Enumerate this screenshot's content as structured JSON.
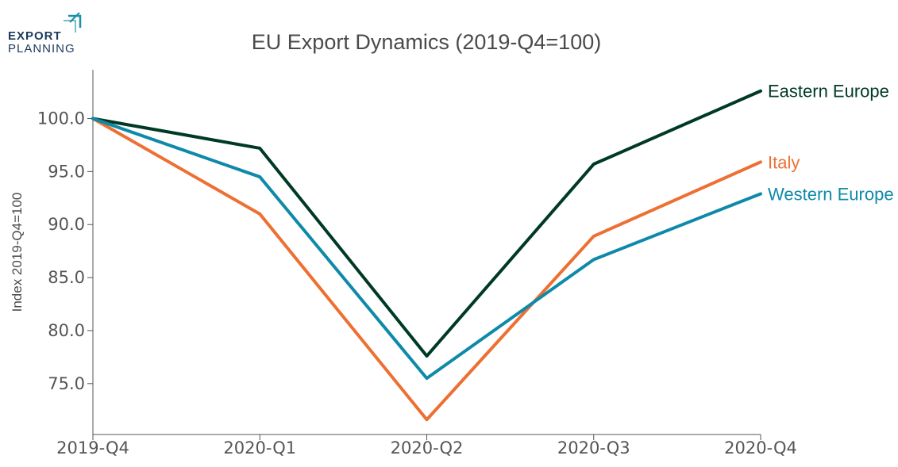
{
  "logo": {
    "line1": "EXPORT",
    "line2": "PLANNING",
    "accent_color": "#1a8fa5"
  },
  "chart_data": {
    "type": "line",
    "title": "EU Export Dynamics (2019-Q4=100)",
    "xlabel": "",
    "ylabel": "Index 2019-Q4=100",
    "categories": [
      "2019-Q4",
      "2020-Q1",
      "2020-Q2",
      "2020-Q3",
      "2020-Q4"
    ],
    "yticks": [
      "75.0",
      "80.0",
      "85.0",
      "90.0",
      "95.0",
      "100.0"
    ],
    "ylim": [
      70.2,
      104.6
    ],
    "grid": false,
    "legend": "inline labels at line ends",
    "series": [
      {
        "name": "Eastern Europe",
        "color": "#003a24",
        "values": [
          100.0,
          97.2,
          77.6,
          95.7,
          102.6
        ]
      },
      {
        "name": "Italy",
        "color": "#ee6f32",
        "values": [
          100.0,
          91.0,
          71.6,
          88.9,
          95.9
        ]
      },
      {
        "name": "Western Europe",
        "color": "#0e8aa8",
        "values": [
          100.0,
          94.5,
          75.5,
          86.7,
          92.9
        ]
      }
    ]
  }
}
